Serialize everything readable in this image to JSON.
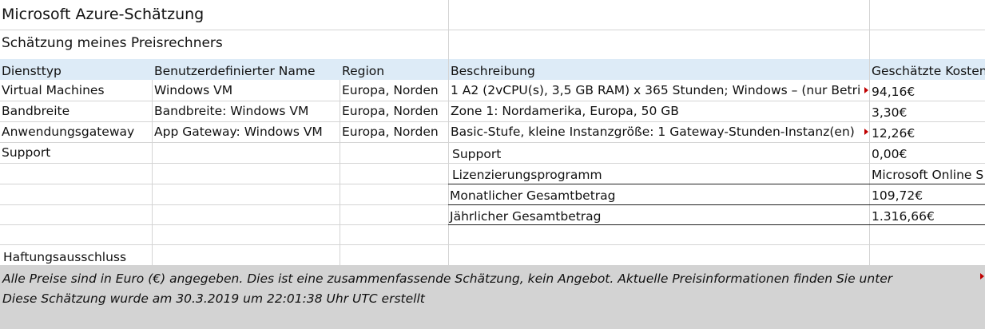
{
  "title": "Microsoft Azure-Schätzung",
  "subtitle": "Schätzung meines Preisrechners",
  "headers": {
    "service_type": "Diensttyp",
    "custom_name": "Benutzerdefinierter Name",
    "region": "Region",
    "description": "Beschreibung",
    "estimated_cost": "Geschätzte Kosten"
  },
  "rows": [
    {
      "service_type": "Virtual Machines",
      "custom_name": "Windows VM",
      "region": "Europa, Norden",
      "description": "1 A2 (2vCPU(s), 3,5 GB RAM) x 365 Stunden; Windows – (nur Betri",
      "cost": "94,16€"
    },
    {
      "service_type": "Bandbreite",
      "custom_name": "Bandbreite: Windows VM",
      "region": "Europa, Norden",
      "description": "Zone 1: Nordamerika, Europa, 50 GB",
      "cost": "3,30€"
    },
    {
      "service_type": "Anwendungsgateway",
      "custom_name": "App Gateway: Windows VM",
      "region": "Europa, Norden",
      "description": "Basic-Stufe, kleine Instanzgröße: 1 Gateway-Stunden-Instanz(en)",
      "cost": "12,26€"
    },
    {
      "service_type": "Support",
      "custom_name": "",
      "region": "",
      "description": "",
      "cost": ""
    }
  ],
  "summary": {
    "support_label": "Support",
    "support_value": "0,00€",
    "licensing_label": "Lizenzierungsprogramm",
    "licensing_value": "Microsoft Online S",
    "monthly_label": "Monatlicher Gesamtbetrag",
    "monthly_value": "109,72€",
    "yearly_label": "Jährlicher Gesamtbetrag",
    "yearly_value": "1.316,66€"
  },
  "disclaimer": {
    "label": "Haftungsausschluss",
    "line1": "Alle Preise sind in Euro (€) angegeben. Dies ist eine zusammenfassende Schätzung, kein Angebot. Aktuelle Preisinformationen finden Sie unter",
    "line2": "Diese Schätzung wurde am 30.3.2019 um 22:01:38 Uhr UTC erstellt"
  },
  "colors": {
    "header_fill": "#ddebf7",
    "footer_fill": "#d3d3d3",
    "overflow_marker": "#c00000"
  }
}
